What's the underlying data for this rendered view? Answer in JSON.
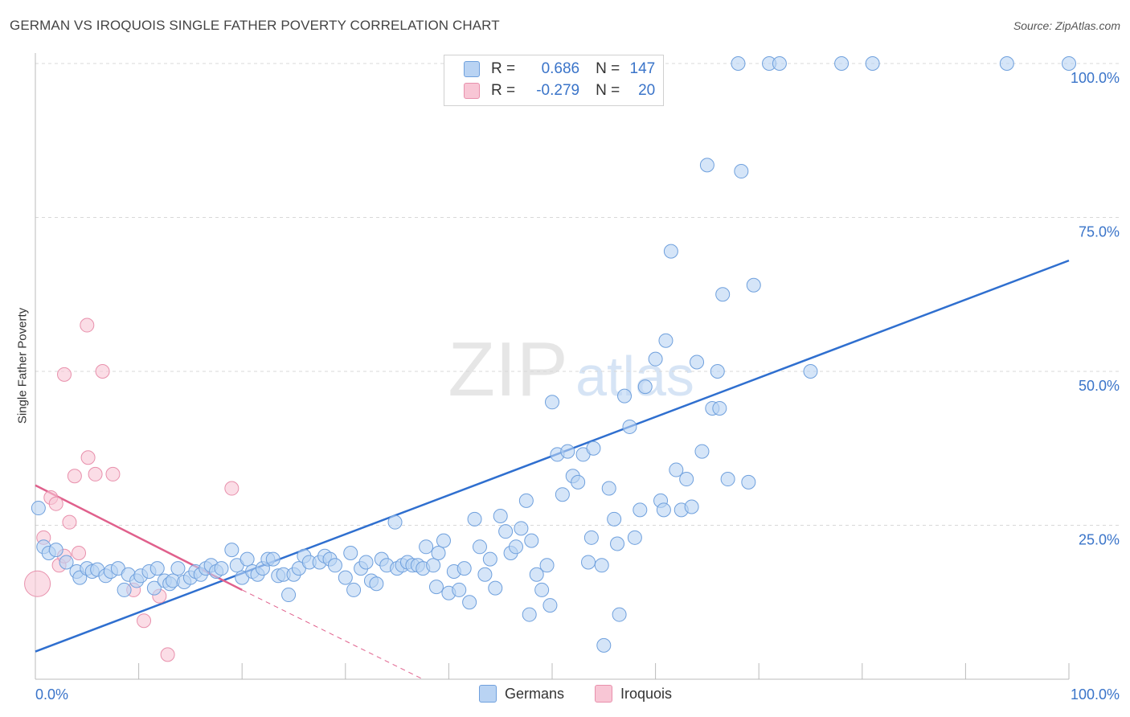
{
  "title": "GERMAN VS IROQUOIS SINGLE FATHER POVERTY CORRELATION CHART",
  "source": "Source: ZipAtlas.com",
  "watermark": {
    "zip": "ZIP",
    "atlas": "atlas"
  },
  "legend": {
    "rows": [
      {
        "r_label": "R =",
        "r_value": "0.686",
        "n_label": "N =",
        "n_value": "147"
      },
      {
        "r_label": "R =",
        "r_value": "-0.279",
        "n_label": "N =",
        "n_value": "20"
      }
    ]
  },
  "bottom_legend": {
    "germans": "Germans",
    "iroquois": "Iroquois"
  },
  "colors": {
    "germans_fill": "#b9d3f3",
    "germans_stroke": "#6fa0dd",
    "germans_line": "#2f6fcf",
    "iroquois_fill": "#f8c6d5",
    "iroquois_stroke": "#e890ac",
    "iroquois_line": "#e0608c",
    "axis_text": "#3a74c9",
    "grid": "#d8d8d8"
  },
  "chart_data": {
    "type": "scatter",
    "title": "GERMAN VS IROQUOIS SINGLE FATHER POVERTY CORRELATION CHART",
    "xlabel": "",
    "ylabel": "Single Father Poverty",
    "xlim": [
      0,
      100
    ],
    "ylim": [
      0,
      100
    ],
    "x_tick_labels": [
      "0.0%",
      "100.0%"
    ],
    "y_tick_labels": [
      "25.0%",
      "50.0%",
      "75.0%",
      "100.0%"
    ],
    "y_ticks": [
      25,
      50,
      75,
      100
    ],
    "x_minor_ticks": [
      0,
      10,
      20,
      30,
      40,
      50,
      60,
      70,
      80,
      90,
      100
    ],
    "series": [
      {
        "name": "Germans",
        "r": 0.686,
        "n": 147,
        "trend": {
          "x": [
            0,
            100
          ],
          "y": [
            4.5,
            68
          ]
        },
        "points": [
          [
            0.3,
            27.8
          ],
          [
            0.8,
            21.5
          ],
          [
            1.3,
            20.5
          ],
          [
            2,
            21
          ],
          [
            3,
            19
          ],
          [
            4,
            17.5
          ],
          [
            4.3,
            16.5
          ],
          [
            5,
            18
          ],
          [
            5.5,
            17.5
          ],
          [
            6,
            17.8
          ],
          [
            6.8,
            16.8
          ],
          [
            7.3,
            17.5
          ],
          [
            8,
            18
          ],
          [
            8.6,
            14.5
          ],
          [
            9,
            17
          ],
          [
            9.8,
            16
          ],
          [
            10.2,
            16.8
          ],
          [
            11,
            17.5
          ],
          [
            11.5,
            14.8
          ],
          [
            11.8,
            18
          ],
          [
            12.5,
            16
          ],
          [
            13,
            15.5
          ],
          [
            13.3,
            16
          ],
          [
            13.8,
            18
          ],
          [
            14.4,
            15.8
          ],
          [
            15,
            16.5
          ],
          [
            15.5,
            17.5
          ],
          [
            16,
            17
          ],
          [
            16.5,
            18
          ],
          [
            17,
            18.5
          ],
          [
            17.5,
            17.5
          ],
          [
            18,
            18
          ],
          [
            19,
            21
          ],
          [
            19.5,
            18.5
          ],
          [
            20,
            16.5
          ],
          [
            20.5,
            19.5
          ],
          [
            21,
            17.5
          ],
          [
            21.5,
            17
          ],
          [
            22,
            18
          ],
          [
            22.5,
            19.5
          ],
          [
            23,
            19.5
          ],
          [
            23.5,
            16.8
          ],
          [
            24,
            17
          ],
          [
            24.5,
            13.7
          ],
          [
            25,
            17
          ],
          [
            25.5,
            18
          ],
          [
            26,
            20
          ],
          [
            26.5,
            19
          ],
          [
            27.5,
            19
          ],
          [
            28,
            20
          ],
          [
            28.5,
            19.5
          ],
          [
            29,
            18.5
          ],
          [
            30,
            16.5
          ],
          [
            30.5,
            20.5
          ],
          [
            30.8,
            14.5
          ],
          [
            31.5,
            18
          ],
          [
            32,
            19
          ],
          [
            32.5,
            16
          ],
          [
            33,
            15.5
          ],
          [
            33.5,
            19.5
          ],
          [
            34,
            18.5
          ],
          [
            34.8,
            25.5
          ],
          [
            35,
            18
          ],
          [
            35.5,
            18.5
          ],
          [
            36,
            19
          ],
          [
            36.5,
            18.5
          ],
          [
            37,
            18.5
          ],
          [
            37.5,
            18
          ],
          [
            37.8,
            21.5
          ],
          [
            38.5,
            18.5
          ],
          [
            38.8,
            15
          ],
          [
            39,
            20.5
          ],
          [
            39.5,
            22.5
          ],
          [
            40,
            14
          ],
          [
            40.5,
            17.5
          ],
          [
            41,
            14.5
          ],
          [
            41.5,
            18
          ],
          [
            42,
            12.5
          ],
          [
            42.5,
            26
          ],
          [
            43,
            21.5
          ],
          [
            43.5,
            17
          ],
          [
            44,
            19.5
          ],
          [
            44.5,
            14.8
          ],
          [
            45,
            26.5
          ],
          [
            45.5,
            24
          ],
          [
            46,
            20.5
          ],
          [
            46.5,
            21.5
          ],
          [
            47,
            24.5
          ],
          [
            47.5,
            29
          ],
          [
            47.8,
            10.5
          ],
          [
            48,
            22.5
          ],
          [
            48.5,
            17
          ],
          [
            49,
            14.5
          ],
          [
            49.5,
            18.5
          ],
          [
            49.8,
            12
          ],
          [
            50,
            45
          ],
          [
            50.5,
            36.5
          ],
          [
            51,
            30
          ],
          [
            51.5,
            37
          ],
          [
            52,
            33
          ],
          [
            52.5,
            32
          ],
          [
            53,
            36.5
          ],
          [
            53.5,
            19
          ],
          [
            53.8,
            23
          ],
          [
            54,
            37.5
          ],
          [
            54.8,
            18.5
          ],
          [
            55,
            5.5
          ],
          [
            55.5,
            31
          ],
          [
            56,
            26
          ],
          [
            56.3,
            22
          ],
          [
            56.5,
            10.5
          ],
          [
            57,
            46
          ],
          [
            57.5,
            41
          ],
          [
            58,
            23
          ],
          [
            58.5,
            27.5
          ],
          [
            59,
            47.5
          ],
          [
            60,
            52
          ],
          [
            60.5,
            29
          ],
          [
            60.8,
            27.5
          ],
          [
            61,
            55
          ],
          [
            61.5,
            69.5
          ],
          [
            62,
            34
          ],
          [
            62.5,
            27.5
          ],
          [
            63,
            32.5
          ],
          [
            63.5,
            28
          ],
          [
            64,
            51.5
          ],
          [
            64.5,
            37
          ],
          [
            65,
            83.5
          ],
          [
            65.5,
            44
          ],
          [
            66,
            50
          ],
          [
            66.2,
            44
          ],
          [
            66.5,
            62.5
          ],
          [
            67,
            32.5
          ],
          [
            68,
            100
          ],
          [
            68.3,
            82.5
          ],
          [
            69,
            32
          ],
          [
            69.5,
            64
          ],
          [
            71,
            100
          ],
          [
            72,
            100
          ],
          [
            75,
            50
          ],
          [
            78,
            100
          ],
          [
            81,
            100
          ],
          [
            94,
            100
          ],
          [
            100,
            100
          ]
        ]
      },
      {
        "name": "Iroquois",
        "r": -0.279,
        "n": 20,
        "trend": {
          "x": [
            0,
            20
          ],
          "y": [
            31.5,
            14.5
          ]
        },
        "trend_extension": {
          "x": [
            20,
            37.5
          ],
          "y": [
            14.5,
            0
          ]
        },
        "points": [
          [
            0.2,
            15.5
          ],
          [
            0.8,
            23
          ],
          [
            1.5,
            29.5
          ],
          [
            2,
            28.5
          ],
          [
            2.3,
            18.5
          ],
          [
            2.8,
            20
          ],
          [
            2.8,
            49.5
          ],
          [
            3.3,
            25.5
          ],
          [
            3.8,
            33
          ],
          [
            4.2,
            20.5
          ],
          [
            5,
            57.5
          ],
          [
            5.1,
            36
          ],
          [
            5.8,
            33.3
          ],
          [
            6.5,
            50
          ],
          [
            7.5,
            33.3
          ],
          [
            9.5,
            14.5
          ],
          [
            10.5,
            9.5
          ],
          [
            12,
            13.5
          ],
          [
            12.8,
            4
          ],
          [
            19,
            31
          ]
        ]
      }
    ]
  }
}
